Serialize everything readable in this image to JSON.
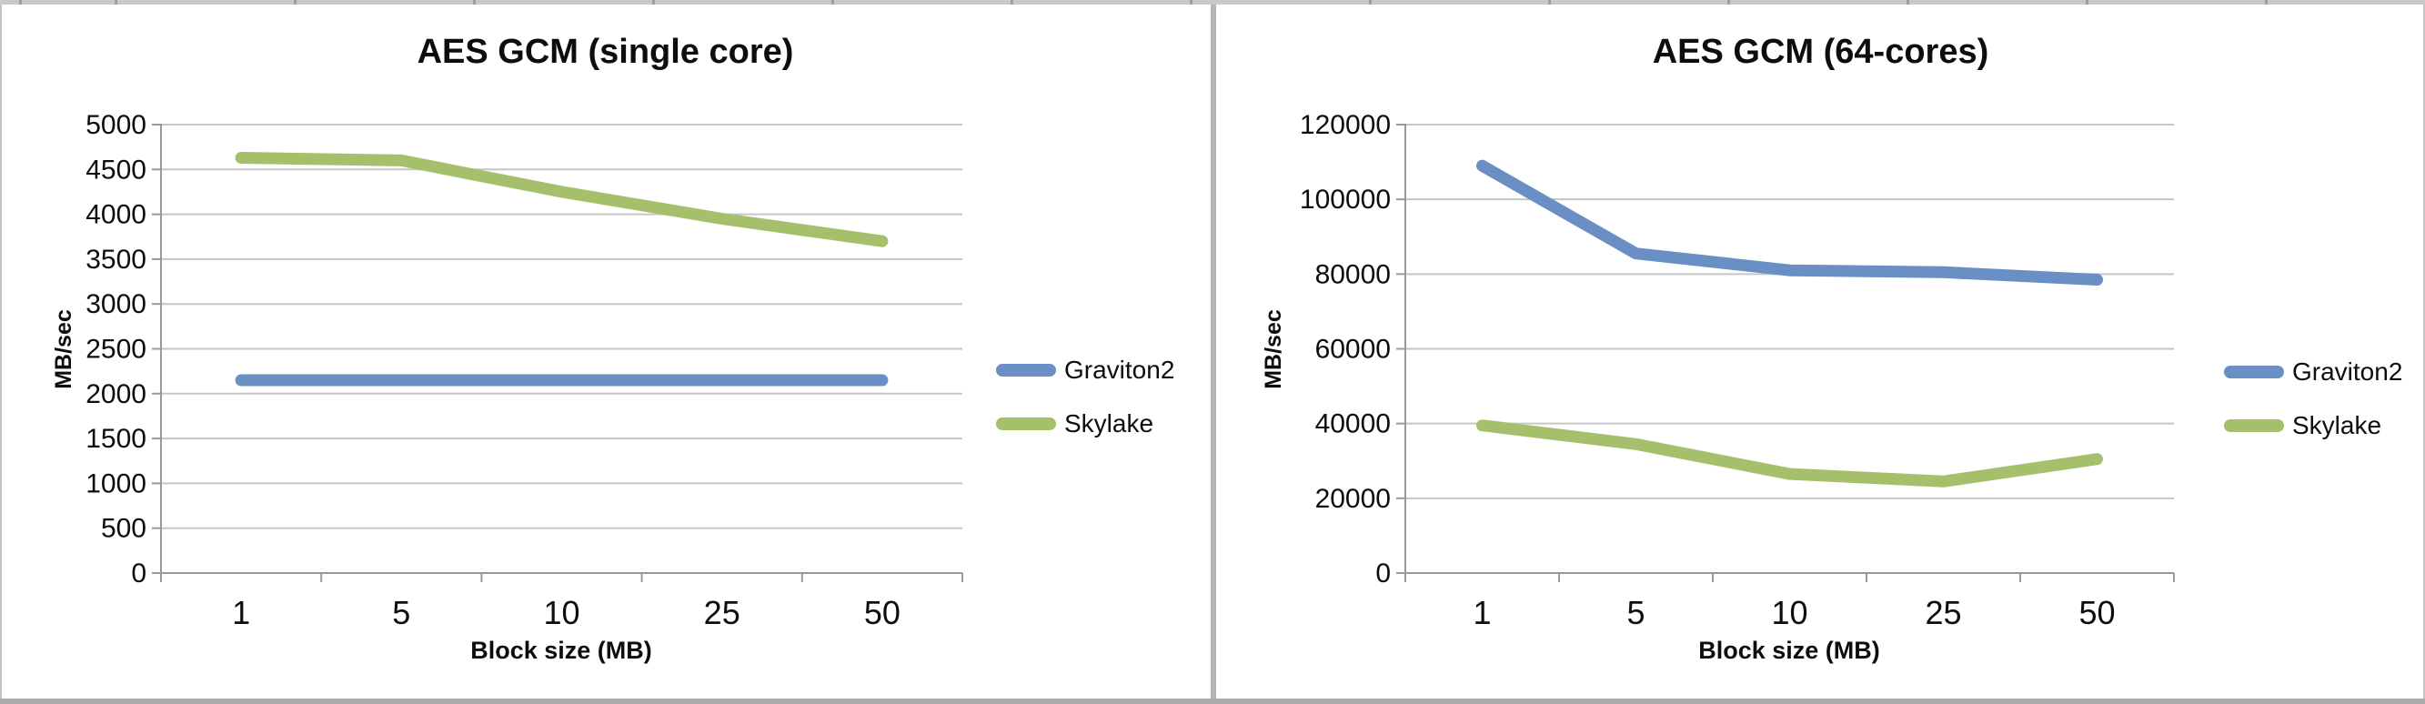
{
  "frame": {
    "background": "#ffffff",
    "gridline_color": "#c6c6c6",
    "axis_color": "#999999",
    "top_strip_color": "#c9c9c9",
    "bottom_strip_color": "#ababab",
    "divider_color": "#b5b5b5",
    "text_color": "#0d0d0d"
  },
  "chart_data": [
    {
      "type": "line",
      "title": "AES GCM (single core)",
      "xlabel": "Block size (MB)",
      "ylabel": "MB/sec",
      "categories": [
        "1",
        "5",
        "10",
        "25",
        "50"
      ],
      "series": [
        {
          "name": "Graviton2",
          "color": "#6a8fc4",
          "values": [
            2150,
            2150,
            2150,
            2150,
            2150
          ]
        },
        {
          "name": "Skylake",
          "color": "#a5bf6b",
          "values": [
            4630,
            4600,
            4250,
            3950,
            3700
          ]
        }
      ],
      "ylim": [
        0,
        5000
      ],
      "yticks": [
        0,
        500,
        1000,
        1500,
        2000,
        2500,
        3000,
        3500,
        4000,
        4500,
        5000
      ],
      "grid": "horizontal",
      "legend_position": "right"
    },
    {
      "type": "line",
      "title": "AES GCM (64-cores)",
      "xlabel": "Block size (MB)",
      "ylabel": "MB/sec",
      "categories": [
        "1",
        "5",
        "10",
        "25",
        "50"
      ],
      "series": [
        {
          "name": "Graviton2",
          "color": "#6a8fc4",
          "values": [
            109000,
            85500,
            81000,
            80500,
            78500
          ]
        },
        {
          "name": "Skylake",
          "color": "#a5bf6b",
          "values": [
            39500,
            34500,
            26500,
            24500,
            30500
          ]
        }
      ],
      "ylim": [
        0,
        120000
      ],
      "yticks": [
        0,
        20000,
        40000,
        60000,
        80000,
        100000,
        120000
      ],
      "grid": "horizontal",
      "legend_position": "right"
    }
  ]
}
